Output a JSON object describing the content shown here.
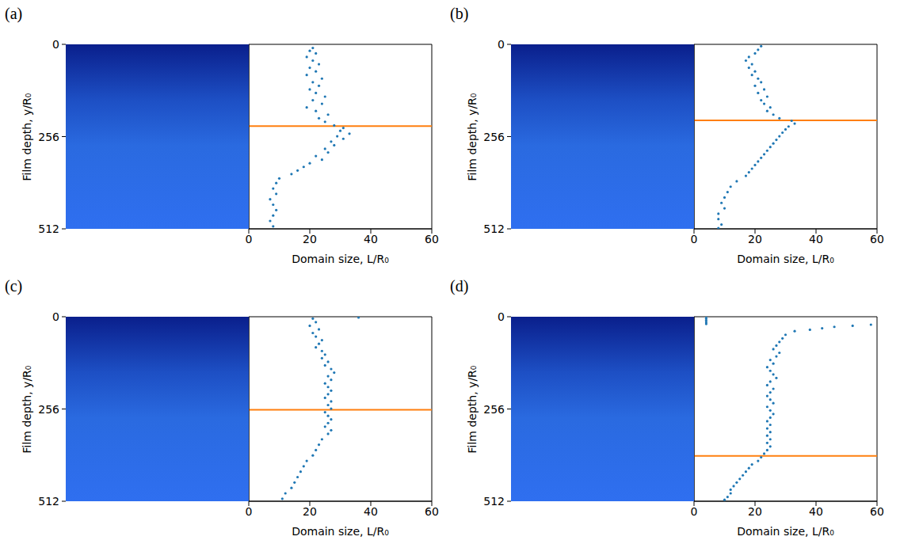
{
  "chart_data": [
    {
      "type": "scatter",
      "title": "(a)",
      "x_label": "Domain size, L/R₀",
      "y_label": "Film depth, y/R₀",
      "xlim": [
        0,
        60
      ],
      "xticks": [
        0,
        20,
        40,
        60
      ],
      "ylim": [
        512,
        0
      ],
      "yticks": [
        0,
        256,
        512
      ],
      "series": [
        {
          "type": "scatter",
          "color": "#1f77b4",
          "x": [
            21,
            20,
            22,
            19,
            21,
            23,
            20,
            22,
            19,
            24,
            21,
            23,
            20,
            22,
            25,
            21,
            24,
            19,
            22,
            26,
            23,
            25,
            28,
            31,
            30,
            33,
            29,
            31,
            27,
            28,
            25,
            26,
            22,
            24,
            20,
            18,
            16,
            14,
            10,
            9,
            8,
            9,
            7,
            8,
            9,
            8,
            7,
            8
          ],
          "values": [
            10,
            18,
            25,
            35,
            45,
            55,
            65,
            75,
            85,
            95,
            105,
            115,
            125,
            135,
            145,
            155,
            165,
            175,
            185,
            195,
            205,
            215,
            225,
            232,
            240,
            248,
            255,
            262,
            270,
            280,
            290,
            300,
            310,
            320,
            330,
            340,
            350,
            360,
            372,
            385,
            400,
            415,
            430,
            445,
            460,
            475,
            490,
            505
          ]
        },
        {
          "type": "hline",
          "color": "#ff7f0e",
          "y": 227
        }
      ]
    },
    {
      "type": "scatter",
      "title": "(b)",
      "x_label": "Domain size, L/R₀",
      "y_label": "Film depth, y/R₀",
      "xlim": [
        0,
        60
      ],
      "xticks": [
        0,
        20,
        40,
        60
      ],
      "ylim": [
        512,
        0
      ],
      "yticks": [
        0,
        256,
        512
      ],
      "series": [
        {
          "type": "scatter",
          "color": "#1f77b4",
          "x": [
            22,
            21,
            20,
            18,
            17,
            19,
            18,
            20,
            19,
            21,
            22,
            20,
            23,
            21,
            24,
            22,
            23,
            25,
            24,
            26,
            28,
            32,
            33,
            31,
            30,
            29,
            28,
            27,
            26,
            25,
            24,
            23,
            22,
            21,
            20,
            19,
            18,
            17,
            14,
            12,
            11,
            10,
            9,
            10,
            8,
            8,
            9,
            8
          ],
          "values": [
            5,
            15,
            25,
            35,
            45,
            55,
            65,
            75,
            85,
            95,
            105,
            115,
            125,
            135,
            145,
            155,
            165,
            175,
            185,
            195,
            205,
            212,
            220,
            228,
            236,
            245,
            255,
            265,
            275,
            285,
            295,
            305,
            315,
            325,
            335,
            345,
            355,
            365,
            380,
            395,
            410,
            425,
            440,
            455,
            470,
            485,
            500,
            510
          ]
        },
        {
          "type": "hline",
          "color": "#ff7f0e",
          "y": 211
        }
      ]
    },
    {
      "type": "scatter",
      "title": "(c)",
      "x_label": "Domain size, L/R₀",
      "y_label": "Film depth, y/R₀",
      "xlim": [
        0,
        60
      ],
      "xticks": [
        0,
        20,
        40,
        60
      ],
      "ylim": [
        512,
        0
      ],
      "yticks": [
        0,
        256,
        512
      ],
      "series": [
        {
          "type": "scatter",
          "color": "#1f77b4",
          "x": [
            36,
            21,
            22,
            20,
            23,
            21,
            22,
            24,
            23,
            22,
            24,
            25,
            24,
            26,
            25,
            27,
            28,
            26,
            27,
            25,
            26,
            27,
            26,
            25,
            27,
            26,
            27,
            25,
            26,
            27,
            26,
            25,
            27,
            26,
            24,
            23,
            22,
            21,
            19,
            18,
            17,
            16,
            15,
            14,
            12,
            11
          ],
          "values": [
            2,
            5,
            15,
            25,
            35,
            45,
            55,
            65,
            75,
            85,
            95,
            105,
            115,
            125,
            135,
            145,
            155,
            165,
            175,
            185,
            195,
            205,
            215,
            225,
            235,
            245,
            255,
            265,
            275,
            285,
            295,
            305,
            315,
            325,
            340,
            355,
            370,
            385,
            400,
            415,
            430,
            445,
            460,
            475,
            490,
            505
          ]
        },
        {
          "type": "hline",
          "color": "#ff7f0e",
          "y": 258
        }
      ]
    },
    {
      "type": "scatter",
      "title": "(d)",
      "x_label": "Domain size, L/R₀",
      "y_label": "Film depth, y/R₀",
      "xlim": [
        0,
        60
      ],
      "xticks": [
        0,
        20,
        40,
        60
      ],
      "ylim": [
        512,
        0
      ],
      "yticks": [
        0,
        256,
        512
      ],
      "series": [
        {
          "type": "scatter",
          "color": "#1f77b4",
          "x": [
            4,
            4,
            4,
            4,
            4,
            58,
            52,
            46,
            42,
            38,
            33,
            30,
            29,
            28,
            27,
            26,
            28,
            27,
            25,
            26,
            24,
            25,
            26,
            27,
            25,
            24,
            26,
            25,
            24,
            25,
            26,
            24,
            25,
            26,
            25,
            24,
            25,
            24,
            25,
            24,
            25,
            24,
            25,
            24,
            23,
            22,
            21,
            19,
            18,
            17,
            16,
            15,
            14,
            13,
            12,
            12,
            11,
            10
          ],
          "values": [
            0,
            5,
            10,
            15,
            20,
            22,
            25,
            28,
            32,
            36,
            40,
            50,
            60,
            70,
            80,
            90,
            100,
            110,
            120,
            130,
            140,
            150,
            160,
            170,
            180,
            190,
            200,
            210,
            220,
            230,
            240,
            250,
            260,
            270,
            280,
            290,
            300,
            310,
            320,
            330,
            340,
            350,
            360,
            370,
            380,
            390,
            400,
            410,
            420,
            430,
            440,
            450,
            460,
            470,
            480,
            490,
            500,
            508
          ]
        },
        {
          "type": "hline",
          "color": "#ff7f0e",
          "y": 386
        }
      ]
    }
  ]
}
